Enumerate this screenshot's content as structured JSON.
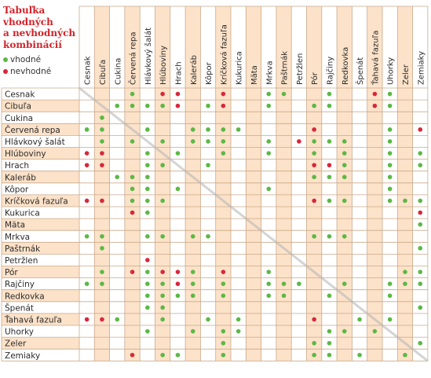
{
  "title_lines": [
    "Tabuľka",
    "vhodných",
    "a nevhodných",
    "kombinácií"
  ],
  "legend": {
    "good": "vhodné",
    "bad": "nevhodné"
  },
  "colors": {
    "good": "#5cb845",
    "bad": "#d9273a",
    "band": "#fce2c9",
    "grid": "#c9aa8c",
    "text": "#2b2b2b",
    "title": "#d2232a"
  },
  "vegetables": [
    "Cesnak",
    "Cibuľa",
    "Cukina",
    "Červená repa",
    "Hlávkový šalát",
    "Hlúboviny",
    "Hrach",
    "Kaleráb",
    "Kôpor",
    "Kríčková fazuľa",
    "Kukurica",
    "Mäta",
    "Mrkva",
    "Paštrnák",
    "Petržlen",
    "Pór",
    "Rajčiny",
    "Redkovka",
    "Špenát",
    "Ťahavá fazuľa",
    "Uhorky",
    "Zeler",
    "Zemiaky"
  ],
  "rows": [
    [
      "",
      "",
      "",
      "g",
      "",
      "b",
      "b",
      "",
      "",
      "b",
      "",
      "",
      "g",
      "g",
      "",
      "",
      "g",
      "",
      "",
      "b",
      "g",
      "",
      ""
    ],
    [
      "",
      "",
      "g",
      "g",
      "g",
      "g",
      "b",
      "",
      "g",
      "b",
      "",
      "",
      "g",
      "",
      "",
      "g",
      "g",
      "",
      "",
      "b",
      "g",
      "",
      ""
    ],
    [
      "",
      "g",
      "",
      "",
      "",
      "",
      "",
      "",
      "",
      "",
      "",
      "",
      "",
      "",
      "",
      "",
      "",
      "",
      "",
      "",
      "",
      "",
      ""
    ],
    [
      "g",
      "g",
      "",
      "",
      "g",
      "",
      "",
      "g",
      "g",
      "g",
      "g",
      "",
      "",
      "",
      "",
      "b",
      "",
      "",
      "",
      "",
      "g",
      "",
      "b"
    ],
    [
      "",
      "g",
      "",
      "g",
      "",
      "g",
      "",
      "g",
      "g",
      "g",
      "",
      "",
      "g",
      "",
      "b",
      "g",
      "g",
      "g",
      "",
      "",
      "g",
      "",
      ""
    ],
    [
      "b",
      "b",
      "",
      "",
      "g",
      "",
      "g",
      "",
      "",
      "g",
      "",
      "",
      "g",
      "",
      "",
      "g",
      "",
      "g",
      "",
      "",
      "g",
      "",
      "g"
    ],
    [
      "b",
      "b",
      "",
      "",
      "g",
      "g",
      "",
      "",
      "g",
      "",
      "",
      "",
      "",
      "",
      "",
      "b",
      "b",
      "g",
      "",
      "",
      "g",
      "",
      "g"
    ],
    [
      "",
      "",
      "g",
      "g",
      "g",
      "",
      "",
      "",
      "",
      "",
      "",
      "",
      "",
      "",
      "",
      "g",
      "g",
      "g",
      "",
      "",
      "g",
      "",
      ""
    ],
    [
      "",
      "",
      "",
      "g",
      "g",
      "",
      "g",
      "",
      "",
      "",
      "",
      "",
      "g",
      "",
      "",
      "",
      "",
      "",
      "",
      "",
      "g",
      "",
      ""
    ],
    [
      "b",
      "b",
      "",
      "g",
      "g",
      "g",
      "",
      "",
      "",
      "",
      "",
      "",
      "",
      "",
      "",
      "b",
      "g",
      "g",
      "",
      "",
      "g",
      "g",
      "g"
    ],
    [
      "",
      "",
      "",
      "b",
      "g",
      "",
      "",
      "",
      "",
      "",
      "",
      "",
      "",
      "",
      "",
      "",
      "",
      "",
      "",
      "",
      "",
      "",
      "b"
    ],
    [
      "",
      "",
      "",
      "",
      "",
      "",
      "",
      "",
      "",
      "",
      "",
      "",
      "",
      "",
      "",
      "",
      "",
      "",
      "",
      "",
      "",
      "",
      "g"
    ],
    [
      "g",
      "g",
      "",
      "",
      "g",
      "g",
      "",
      "g",
      "g",
      "",
      "",
      "",
      "",
      "",
      "",
      "g",
      "g",
      "g",
      "",
      "",
      "",
      "",
      ""
    ],
    [
      "",
      "g",
      "",
      "",
      "",
      "",
      "",
      "",
      "",
      "",
      "",
      "",
      "",
      "",
      "",
      "",
      "",
      "",
      "",
      "",
      "",
      "",
      "g"
    ],
    [
      "",
      "",
      "",
      "",
      "b",
      "",
      "",
      "",
      "",
      "",
      "",
      "",
      "",
      "",
      "",
      "",
      "",
      "",
      "",
      "",
      "",
      "",
      ""
    ],
    [
      "",
      "g",
      "",
      "b",
      "g",
      "b",
      "b",
      "g",
      "",
      "b",
      "",
      "",
      "g",
      "",
      "",
      "",
      "",
      "",
      "",
      "",
      "",
      "g",
      "g"
    ],
    [
      "g",
      "g",
      "",
      "",
      "g",
      "g",
      "b",
      "g",
      "",
      "g",
      "",
      "",
      "g",
      "g",
      "g",
      "",
      "",
      "g",
      "",
      "",
      "g",
      "g",
      "g"
    ],
    [
      "",
      "",
      "",
      "",
      "g",
      "g",
      "g",
      "g",
      "",
      "g",
      "",
      "",
      "g",
      "g",
      "",
      "",
      "g",
      "",
      "",
      "",
      "g",
      "",
      ""
    ],
    [
      "",
      "",
      "",
      "",
      "g",
      "g",
      "",
      "",
      "",
      "",
      "",
      "",
      "",
      "",
      "",
      "",
      "",
      "",
      "",
      "",
      "",
      "",
      "g"
    ],
    [
      "b",
      "b",
      "g",
      "",
      "",
      "g",
      "",
      "",
      "g",
      "",
      "g",
      "",
      "",
      "",
      "",
      "b",
      "",
      "",
      "g",
      "",
      "g",
      "",
      ""
    ],
    [
      "",
      "",
      "",
      "",
      "g",
      "",
      "",
      "g",
      "",
      "g",
      "g",
      "",
      "",
      "",
      "",
      "",
      "g",
      "g",
      "",
      "g",
      "",
      "",
      ""
    ],
    [
      "",
      "",
      "",
      "",
      "",
      "",
      "",
      "",
      "",
      "g",
      "",
      "",
      "",
      "",
      "",
      "g",
      "g",
      "",
      "",
      "",
      "",
      "",
      "g"
    ],
    [
      "",
      "",
      "",
      "b",
      "",
      "g",
      "g",
      "",
      "",
      "g",
      "",
      "",
      "",
      "",
      "",
      "g",
      "g",
      "",
      "g",
      "",
      "",
      "g",
      ""
    ]
  ]
}
